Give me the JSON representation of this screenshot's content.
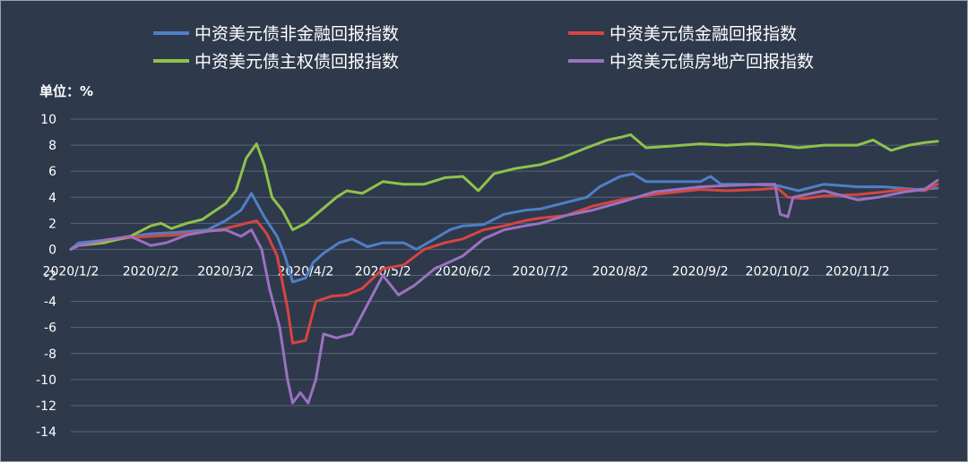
{
  "chart_data": {
    "type": "line",
    "ylabel": "单位：%",
    "ylim": [
      -14,
      10
    ],
    "yticks": [
      10,
      8,
      6,
      4,
      2,
      0,
      -2,
      -4,
      -6,
      -8,
      -10,
      -12,
      -14
    ],
    "x_tick_labels": [
      "2020/1/2",
      "2020/2/2",
      "2020/3/2",
      "2020/4/2",
      "2020/5/2",
      "2020/6/2",
      "2020/7/2",
      "2020/8/2",
      "2020/9/2",
      "2020/10/2",
      "2020/11/2"
    ],
    "xlim": [
      "2020/1/2",
      "2020/12/3"
    ],
    "grid": "horizontal",
    "legend_position": "top",
    "series": [
      {
        "name": "中资美元债非金融回报指数",
        "color": "#4f7fc6",
        "points": [
          [
            "2020/1/2",
            0
          ],
          [
            "2020/1/5",
            0.5
          ],
          [
            "2020/1/15",
            0.7
          ],
          [
            "2020/1/25",
            1.0
          ],
          [
            "2020/2/2",
            1.2
          ],
          [
            "2020/2/12",
            1.3
          ],
          [
            "2020/2/24",
            1.5
          ],
          [
            "2020/3/2",
            2.2
          ],
          [
            "2020/3/8",
            3.0
          ],
          [
            "2020/3/12",
            4.3
          ],
          [
            "2020/3/17",
            2.5
          ],
          [
            "2020/3/22",
            1.0
          ],
          [
            "2020/3/25",
            -0.5
          ],
          [
            "2020/3/28",
            -2.5
          ],
          [
            "2020/4/2",
            -2.2
          ],
          [
            "2020/4/5",
            -1.0
          ],
          [
            "2020/4/9",
            -0.3
          ],
          [
            "2020/4/15",
            0.5
          ],
          [
            "2020/4/20",
            0.8
          ],
          [
            "2020/4/26",
            0.2
          ],
          [
            "2020/5/2",
            0.5
          ],
          [
            "2020/5/10",
            0.5
          ],
          [
            "2020/5/15",
            0.0
          ],
          [
            "2020/5/22",
            0.8
          ],
          [
            "2020/5/28",
            1.5
          ],
          [
            "2020/6/2",
            1.8
          ],
          [
            "2020/6/10",
            1.9
          ],
          [
            "2020/6/18",
            2.7
          ],
          [
            "2020/6/26",
            3.0
          ],
          [
            "2020/7/2",
            3.1
          ],
          [
            "2020/7/10",
            3.5
          ],
          [
            "2020/7/20",
            4.0
          ],
          [
            "2020/7/25",
            4.8
          ],
          [
            "2020/8/2",
            5.6
          ],
          [
            "2020/8/7",
            5.8
          ],
          [
            "2020/8/12",
            5.2
          ],
          [
            "2020/8/20",
            5.2
          ],
          [
            "2020/9/2",
            5.2
          ],
          [
            "2020/9/6",
            5.6
          ],
          [
            "2020/9/10",
            5.0
          ],
          [
            "2020/9/20",
            5.0
          ],
          [
            "2020/10/2",
            4.9
          ],
          [
            "2020/10/10",
            4.5
          ],
          [
            "2020/10/20",
            5.0
          ],
          [
            "2020/11/2",
            4.8
          ],
          [
            "2020/11/12",
            4.8
          ],
          [
            "2020/11/25",
            4.6
          ],
          [
            "2020/12/3",
            4.7
          ]
        ]
      },
      {
        "name": "中资美元债金融回报指数",
        "color": "#d64541",
        "points": [
          [
            "2020/1/2",
            0
          ],
          [
            "2020/1/5",
            0.3
          ],
          [
            "2020/1/15",
            0.6
          ],
          [
            "2020/1/25",
            0.9
          ],
          [
            "2020/2/2",
            1.0
          ],
          [
            "2020/2/12",
            1.1
          ],
          [
            "2020/2/24",
            1.4
          ],
          [
            "2020/3/2",
            1.6
          ],
          [
            "2020/3/10",
            2.0
          ],
          [
            "2020/3/14",
            2.2
          ],
          [
            "2020/3/18",
            1.2
          ],
          [
            "2020/3/22",
            -0.5
          ],
          [
            "2020/3/26",
            -4.5
          ],
          [
            "2020/3/28",
            -7.2
          ],
          [
            "2020/4/2",
            -7.0
          ],
          [
            "2020/4/6",
            -4.0
          ],
          [
            "2020/4/12",
            -3.6
          ],
          [
            "2020/4/18",
            -3.5
          ],
          [
            "2020/4/24",
            -3.0
          ],
          [
            "2020/5/2",
            -1.5
          ],
          [
            "2020/5/10",
            -1.2
          ],
          [
            "2020/5/18",
            0.0
          ],
          [
            "2020/5/26",
            0.5
          ],
          [
            "2020/6/2",
            0.8
          ],
          [
            "2020/6/10",
            1.5
          ],
          [
            "2020/6/18",
            1.8
          ],
          [
            "2020/6/26",
            2.2
          ],
          [
            "2020/7/2",
            2.4
          ],
          [
            "2020/7/12",
            2.6
          ],
          [
            "2020/7/22",
            3.3
          ],
          [
            "2020/8/2",
            3.8
          ],
          [
            "2020/8/15",
            4.2
          ],
          [
            "2020/9/2",
            4.6
          ],
          [
            "2020/9/12",
            4.5
          ],
          [
            "2020/9/25",
            4.6
          ],
          [
            "2020/10/2",
            4.7
          ],
          [
            "2020/10/6",
            4.0
          ],
          [
            "2020/10/12",
            3.9
          ],
          [
            "2020/10/20",
            4.1
          ],
          [
            "2020/11/2",
            4.2
          ],
          [
            "2020/11/12",
            4.4
          ],
          [
            "2020/11/20",
            4.6
          ],
          [
            "2020/11/28",
            4.5
          ],
          [
            "2020/12/3",
            5.0
          ]
        ]
      },
      {
        "name": "中资美元债主权债回报指数",
        "color": "#8fc24a",
        "points": [
          [
            "2020/1/2",
            0
          ],
          [
            "2020/1/5",
            0.3
          ],
          [
            "2020/1/15",
            0.5
          ],
          [
            "2020/1/25",
            1.0
          ],
          [
            "2020/2/2",
            1.8
          ],
          [
            "2020/2/6",
            2.0
          ],
          [
            "2020/2/10",
            1.6
          ],
          [
            "2020/2/16",
            2.0
          ],
          [
            "2020/2/22",
            2.3
          ],
          [
            "2020/3/2",
            3.5
          ],
          [
            "2020/3/6",
            4.5
          ],
          [
            "2020/3/10",
            7.0
          ],
          [
            "2020/3/14",
            8.1
          ],
          [
            "2020/3/17",
            6.5
          ],
          [
            "2020/3/20",
            4.0
          ],
          [
            "2020/3/24",
            3.0
          ],
          [
            "2020/3/28",
            1.5
          ],
          [
            "2020/4/2",
            2.0
          ],
          [
            "2020/4/8",
            3.0
          ],
          [
            "2020/4/14",
            4.0
          ],
          [
            "2020/4/18",
            4.5
          ],
          [
            "2020/4/24",
            4.3
          ],
          [
            "2020/5/2",
            5.2
          ],
          [
            "2020/5/10",
            5.0
          ],
          [
            "2020/5/18",
            5.0
          ],
          [
            "2020/5/26",
            5.5
          ],
          [
            "2020/6/2",
            5.6
          ],
          [
            "2020/6/8",
            4.5
          ],
          [
            "2020/6/14",
            5.8
          ],
          [
            "2020/6/22",
            6.2
          ],
          [
            "2020/7/2",
            6.5
          ],
          [
            "2020/7/10",
            7.0
          ],
          [
            "2020/7/20",
            7.8
          ],
          [
            "2020/7/28",
            8.4
          ],
          [
            "2020/8/2",
            8.6
          ],
          [
            "2020/8/6",
            8.8
          ],
          [
            "2020/8/12",
            7.8
          ],
          [
            "2020/8/20",
            7.9
          ],
          [
            "2020/9/2",
            8.1
          ],
          [
            "2020/9/12",
            8.0
          ],
          [
            "2020/9/22",
            8.1
          ],
          [
            "2020/10/2",
            8.0
          ],
          [
            "2020/10/10",
            7.8
          ],
          [
            "2020/10/20",
            8.0
          ],
          [
            "2020/11/2",
            8.0
          ],
          [
            "2020/11/8",
            8.4
          ],
          [
            "2020/11/15",
            7.6
          ],
          [
            "2020/11/22",
            8.0
          ],
          [
            "2020/11/28",
            8.2
          ],
          [
            "2020/12/3",
            8.3
          ]
        ]
      },
      {
        "name": "中资美元债房地产回报指数",
        "color": "#9a72c0",
        "points": [
          [
            "2020/1/2",
            0
          ],
          [
            "2020/1/5",
            0.3
          ],
          [
            "2020/1/15",
            0.7
          ],
          [
            "2020/1/25",
            1.0
          ],
          [
            "2020/2/2",
            0.3
          ],
          [
            "2020/2/8",
            0.5
          ],
          [
            "2020/2/16",
            1.1
          ],
          [
            "2020/2/24",
            1.4
          ],
          [
            "2020/3/2",
            1.5
          ],
          [
            "2020/3/8",
            1.0
          ],
          [
            "2020/3/12",
            1.5
          ],
          [
            "2020/3/16",
            0.0
          ],
          [
            "2020/3/19",
            -3.0
          ],
          [
            "2020/3/23",
            -6.0
          ],
          [
            "2020/3/26",
            -10.0
          ],
          [
            "2020/3/28",
            -11.8
          ],
          [
            "2020/3/31",
            -11.0
          ],
          [
            "2020/4/3",
            -11.8
          ],
          [
            "2020/4/6",
            -10.0
          ],
          [
            "2020/4/9",
            -6.5
          ],
          [
            "2020/4/14",
            -6.8
          ],
          [
            "2020/4/20",
            -6.5
          ],
          [
            "2020/4/24",
            -5.0
          ],
          [
            "2020/5/2",
            -2.0
          ],
          [
            "2020/5/8",
            -3.5
          ],
          [
            "2020/5/14",
            -2.8
          ],
          [
            "2020/5/22",
            -1.5
          ],
          [
            "2020/6/2",
            -0.5
          ],
          [
            "2020/6/10",
            0.8
          ],
          [
            "2020/6/18",
            1.5
          ],
          [
            "2020/6/26",
            1.8
          ],
          [
            "2020/7/2",
            2.0
          ],
          [
            "2020/7/12",
            2.6
          ],
          [
            "2020/7/22",
            3.0
          ],
          [
            "2020/8/2",
            3.6
          ],
          [
            "2020/8/15",
            4.4
          ],
          [
            "2020/9/2",
            4.8
          ],
          [
            "2020/9/12",
            4.9
          ],
          [
            "2020/9/25",
            5.0
          ],
          [
            "2020/10/1",
            5.0
          ],
          [
            "2020/10/3",
            2.7
          ],
          [
            "2020/10/6",
            2.5
          ],
          [
            "2020/10/8",
            4.0
          ],
          [
            "2020/10/20",
            4.5
          ],
          [
            "2020/11/2",
            3.8
          ],
          [
            "2020/11/10",
            4.0
          ],
          [
            "2020/11/20",
            4.4
          ],
          [
            "2020/11/28",
            4.6
          ],
          [
            "2020/12/3",
            5.3
          ]
        ]
      }
    ]
  }
}
